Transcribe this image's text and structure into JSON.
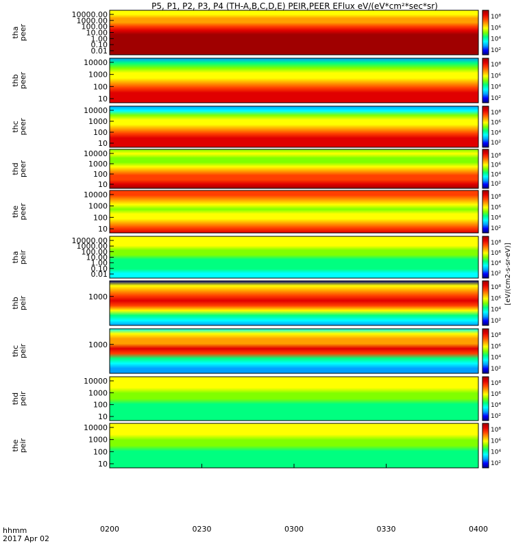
{
  "title": "P5, P1, P2, P3, P4 (TH-A,B,C,D,E) PEIR,PEER EFlux eV/(eV*cm²*sec*sr)",
  "time_axis": {
    "label": "hhmm",
    "date": "2017 Apr 02",
    "ticks": [
      "0200",
      "0230",
      "0300",
      "0330",
      "0400"
    ]
  },
  "colorbar_unit_label": "[eV/(cm2-s-sr-eV)]",
  "colors": {
    "colormap": [
      "#000080",
      "#0000ff",
      "#00a0ff",
      "#00ffff",
      "#00ff80",
      "#80ff00",
      "#ffff00",
      "#ffa000",
      "#ff4000",
      "#e00000",
      "#a00000"
    ],
    "fill": "#ffffff",
    "line": "#000000"
  },
  "chart_data": [
    {
      "type": "heatmap",
      "name": "tha peer",
      "ylabel": "tha\npeer",
      "yticks": [
        "10000.00",
        "1000.00",
        "100.00",
        "10.00",
        "1.00",
        "0.10",
        "0.01"
      ],
      "cbar_ticks": [
        "10⁸",
        "10⁶",
        "10⁴",
        "10²"
      ],
      "profile": [
        0.55,
        0.62,
        0.66,
        0.72,
        0.8,
        0.92,
        0.95,
        0.95,
        0.95,
        0.95,
        0.95,
        0.95
      ]
    },
    {
      "type": "heatmap",
      "name": "thb peer",
      "ylabel": "thb\npeer",
      "yticks": [
        "10000",
        "1000",
        "100",
        "10"
      ],
      "cbar_ticks": [
        "10⁸",
        "10⁶",
        "10⁴",
        "10²"
      ],
      "profile": [
        0.2,
        0.38,
        0.45,
        0.55,
        0.62,
        0.7,
        0.78,
        0.86,
        0.92,
        0.85
      ]
    },
    {
      "type": "heatmap",
      "name": "thc peer",
      "ylabel": "thc\npeer",
      "yticks": [
        "10000",
        "1000",
        "100",
        "10"
      ],
      "cbar_ticks": [
        "10⁸",
        "10⁶",
        "10⁴",
        "10²"
      ],
      "profile": [
        0.22,
        0.33,
        0.45,
        0.55,
        0.62,
        0.7,
        0.78,
        0.86,
        0.92,
        0.88
      ]
    },
    {
      "type": "heatmap",
      "name": "thd peer",
      "ylabel": "thd\npeer",
      "yticks": [
        "10000",
        "1000",
        "100",
        "10"
      ],
      "cbar_ticks": [
        "10⁸",
        "10⁶",
        "10⁴",
        "10²"
      ],
      "profile": [
        0.5,
        0.6,
        0.5,
        0.52,
        0.6,
        0.68,
        0.75,
        0.82,
        0.9,
        0.95
      ]
    },
    {
      "type": "heatmap",
      "name": "the peer",
      "ylabel": "the\npeer",
      "yticks": [
        "10000",
        "1000",
        "100",
        "10"
      ],
      "cbar_ticks": [
        "10⁸",
        "10⁶",
        "10⁴",
        "10²"
      ],
      "profile": [
        0.78,
        0.8,
        0.72,
        0.6,
        0.52,
        0.55,
        0.62,
        0.72,
        0.8,
        0.86
      ]
    },
    {
      "type": "heatmap",
      "name": "tha peir",
      "ylabel": "tha\npeir",
      "yticks": [
        "10000.00",
        "1000.00",
        "100.00",
        "10.00",
        "1.00",
        "0.10",
        "0.01"
      ],
      "cbar_ticks": [
        "10⁸",
        "10⁶",
        "10⁴",
        "10²"
      ],
      "profile": [
        0.62,
        0.6,
        0.55,
        0.5,
        0.45,
        0.42,
        0.4,
        0.35,
        0.3,
        0.25
      ]
    },
    {
      "type": "heatmap",
      "name": "thb peir",
      "ylabel": "thb\npeir",
      "yticks": [
        "1000"
      ],
      "cbar_ticks": [
        "10⁸",
        "10⁶",
        "10⁴",
        "10²"
      ],
      "profile": [
        0.0,
        0.62,
        0.7,
        0.8,
        0.9,
        0.78,
        0.6,
        0.4,
        0.25,
        0.15
      ]
    },
    {
      "type": "heatmap",
      "name": "thc peir",
      "ylabel": "thc\npeir",
      "yticks": [
        "1000"
      ],
      "cbar_ticks": [
        "10⁸",
        "10⁶",
        "10⁴",
        "10²"
      ],
      "profile": [
        0.3,
        0.55,
        0.65,
        0.7,
        0.85,
        0.82,
        0.42,
        0.28,
        0.2,
        0.15
      ]
    },
    {
      "type": "heatmap",
      "name": "thd peir",
      "ylabel": "thd\npeir",
      "yticks": [
        "10000",
        "1000",
        "100",
        "10"
      ],
      "cbar_ticks": [
        "10⁸",
        "10⁶",
        "10⁴",
        "10²"
      ],
      "profile": [
        0.6,
        0.58,
        0.55,
        0.5,
        0.45,
        0.42,
        0.4,
        0.38,
        0.35
      ]
    },
    {
      "type": "heatmap",
      "name": "the peir",
      "ylabel": "the\npeir",
      "yticks": [
        "10000",
        "1000",
        "100",
        "10"
      ],
      "cbar_ticks": [
        "10⁸",
        "10⁶",
        "10⁴",
        "10²"
      ],
      "profile": [
        0.6,
        0.58,
        0.55,
        0.5,
        0.45,
        0.42,
        0.4,
        0.38,
        0.35
      ]
    }
  ]
}
